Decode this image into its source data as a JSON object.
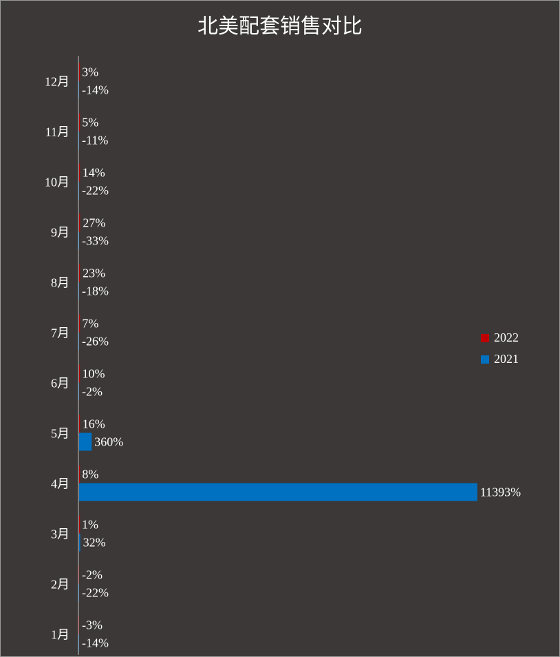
{
  "chart_data": {
    "type": "bar",
    "orientation": "horizontal",
    "title": "北美配套销售对比",
    "categories": [
      "1月",
      "2月",
      "3月",
      "4月",
      "5月",
      "6月",
      "7月",
      "8月",
      "9月",
      "10月",
      "11月",
      "12月"
    ],
    "series": [
      {
        "name": "2022",
        "color": "#c00000",
        "values": [
          -3,
          -2,
          1,
          8,
          16,
          10,
          7,
          23,
          27,
          14,
          5,
          3
        ],
        "labels": [
          "-3%",
          "-2%",
          "1%",
          "8%",
          "16%",
          "10%",
          "7%",
          "23%",
          "27%",
          "14%",
          "5%",
          "3%"
        ]
      },
      {
        "name": "2021",
        "color": "#0070c0",
        "values": [
          -14,
          -22,
          32,
          11393,
          360,
          -2,
          -26,
          -18,
          -33,
          -22,
          -11,
          -14
        ],
        "labels": [
          "-14%",
          "-22%",
          "32%",
          "11393%",
          "360%",
          "-2%",
          "-26%",
          "-18%",
          "-33%",
          "-22%",
          "-11%",
          "-14%"
        ]
      }
    ],
    "unit": "%",
    "legend_position": "right",
    "grid": false
  }
}
